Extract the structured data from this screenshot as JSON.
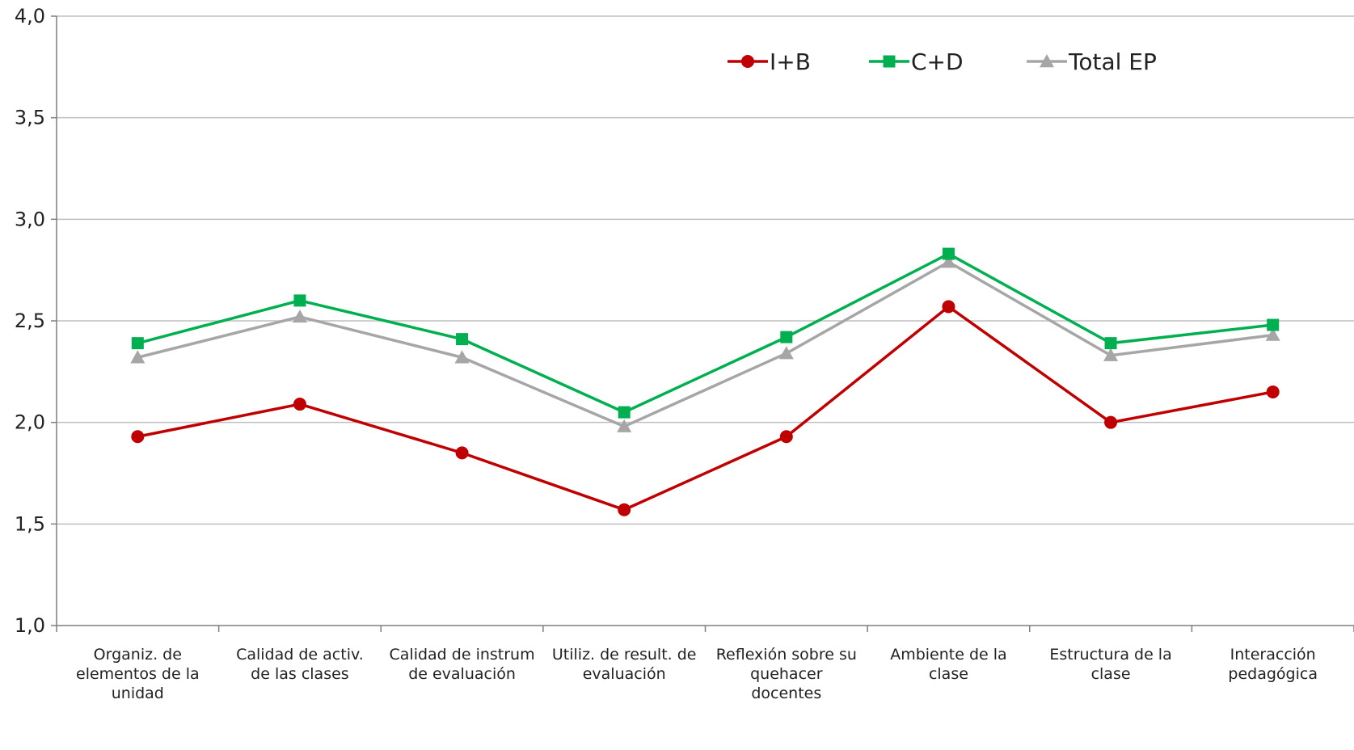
{
  "chart_data": {
    "type": "line",
    "title": "",
    "xlabel": "",
    "ylabel": "",
    "ylim": [
      1.0,
      4.0
    ],
    "yticks": [
      "1,0",
      "1,5",
      "2,0",
      "2,5",
      "3,0",
      "3,5",
      "4,0"
    ],
    "grid": "horizontal",
    "legend_position": "top-right",
    "categories": [
      [
        "Organiz. de",
        "elementos de la",
        "unidad"
      ],
      [
        "Calidad de activ.",
        "de las clases"
      ],
      [
        "Calidad de instrum",
        "de evaluación"
      ],
      [
        "Utiliz. de result. de",
        "evaluación"
      ],
      [
        "Reflexión sobre su",
        "quehacer",
        "docentes"
      ],
      [
        "Ambiente de la",
        "clase"
      ],
      [
        "Estructura de la",
        "clase"
      ],
      [
        "Interacción",
        "pedagógica"
      ]
    ],
    "series": [
      {
        "name": "I+B",
        "color": "#C00000",
        "marker": "circle",
        "values": [
          1.93,
          2.09,
          1.85,
          1.57,
          1.93,
          2.57,
          2.0,
          2.15
        ]
      },
      {
        "name": "C+D",
        "color": "#00B050",
        "marker": "square",
        "values": [
          2.39,
          2.6,
          2.41,
          2.05,
          2.42,
          2.83,
          2.39,
          2.48
        ]
      },
      {
        "name": "Total EP",
        "color": "#A6A6A6",
        "marker": "triangle",
        "values": [
          2.32,
          2.52,
          2.32,
          1.98,
          2.34,
          2.79,
          2.33,
          2.43
        ]
      }
    ]
  }
}
